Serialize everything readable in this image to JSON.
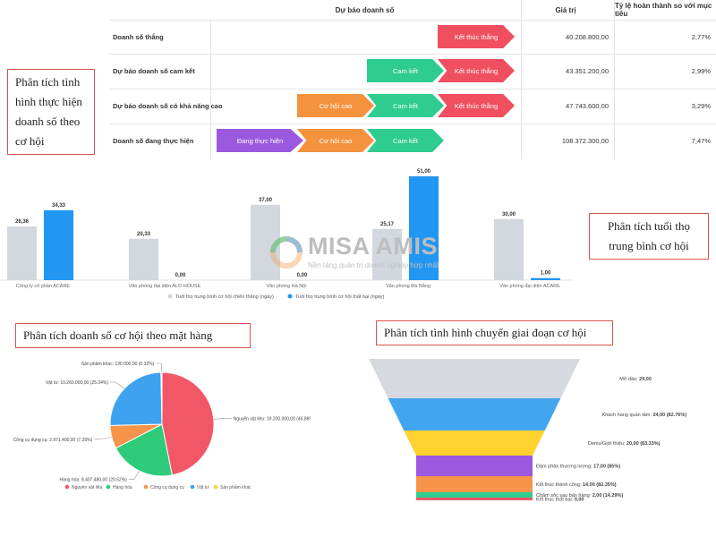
{
  "forecast_table": {
    "col_forecast": "Dự báo doanh số",
    "col_value": "Giá trị",
    "col_ratio": "Tỷ lệ hoàn thành so với mục tiêu",
    "rows": [
      {
        "label": "Doanh số thắng",
        "stages": [
          "Kết thúc thắng"
        ],
        "value": "40.208.800,00",
        "ratio": "2,77%"
      },
      {
        "label": "Dự báo doanh số cam kết",
        "stages": [
          "Cam kết",
          "Kết thúc thắng"
        ],
        "value": "43.351.200,00",
        "ratio": "2,99%"
      },
      {
        "label": "Dự báo doanh số có khả năng cao",
        "stages": [
          "Cơ hội cao",
          "Cam kết",
          "Kết thúc thắng"
        ],
        "value": "47.743.600,00",
        "ratio": "3,29%"
      },
      {
        "label": "Doanh số đang thực hiện",
        "stages": [
          "Đang thực hiện",
          "Cơ hội cao",
          "Cam kết"
        ],
        "value": "108.372.300,00",
        "ratio": "7,47%"
      }
    ],
    "stage_colors": {
      "Đang thực hiện": "#9b59e0",
      "Cơ hội cao": "#f5923e",
      "Cam kết": "#2ecc8f",
      "Kết thúc thắng": "#ef4f5f"
    }
  },
  "callouts": {
    "forecast": "Phân tích tình hình thực hiện doanh số theo cơ hội",
    "age": "Phân tích tuổi thọ trung bình cơ hội",
    "product": "Phân tích doanh số cơ hội theo mặt hàng",
    "stage": "Phân tích tình hình chuyển giai đoạn cơ hội"
  },
  "watermark": {
    "brand": "MISA AMIS",
    "tagline": "Nền tảng quản trị doanh nghiệp hợp nhất"
  },
  "chart_data": [
    {
      "type": "bar",
      "categories": [
        "Công ty cổ phần ACARE",
        "Văn phòng đại diện ALO HOUSE",
        "Văn phòng Hà Nội",
        "Văn phòng Đà Nẵng",
        "Văn phòng đại diện ACARE"
      ],
      "series": [
        {
          "name": "Tuổi thọ trung bình cơ hội chiến thắng (ngày)",
          "color": "#d3d7de",
          "values": [
            26.36,
            20.33,
            37.0,
            25.17,
            30.0
          ],
          "labels": [
            "26,36",
            "20,33",
            "37,00",
            "25,17",
            "30,00"
          ]
        },
        {
          "name": "Tuổi thọ trung bình cơ hội thất bại (ngày)",
          "color": "#2196f3",
          "values": [
            34.33,
            0.0,
            0.0,
            51.0,
            1.0
          ],
          "labels": [
            "34,33",
            "0,00",
            "0,00",
            "51,00",
            "1,00"
          ]
        }
      ],
      "ylim": [
        0,
        51
      ],
      "legend": "bottom"
    },
    {
      "type": "pie",
      "slices": [
        {
          "name": "Nguyên vật liệu",
          "value": 19200000,
          "percent": 46.86,
          "label": "Nguyên vật liệu: 19.200.000,00 (46.86%)",
          "color": "#f25767"
        },
        {
          "name": "Hàng hóa",
          "value": 8407480,
          "percent": 20.52,
          "label": "Hàng hóa: 8.407.480,00 (20.52%)",
          "color": "#2ecc7a"
        },
        {
          "name": "Công cụ dụng cụ",
          "value": 2971400,
          "percent": 7.25,
          "label": "Công cụ dụng cụ: 2.971.400,00 (7.25%)",
          "color": "#f7944a"
        },
        {
          "name": "Vật tư",
          "value": 10260000,
          "percent": 25.04,
          "label": "Vật tư: 10.260.000,00 (25.04%)",
          "color": "#3ea2f0"
        },
        {
          "name": "Sản phẩm khác",
          "value": 130000,
          "percent": 0.32,
          "label": "Sản phẩm khác: 130.000,00 (0.32%)",
          "color": "#f5d33a"
        }
      ],
      "legend": "bottom"
    },
    {
      "type": "funnel",
      "stages": [
        {
          "name": "Mở đầu",
          "value": 29.0,
          "percent": null,
          "label_name": "Mở đầu:",
          "label_value": "29,00",
          "color": "#d6d9e0"
        },
        {
          "name": "Khách hàng quan tâm",
          "value": 24.0,
          "percent": 82.76,
          "label_name": "Khách hàng quan tâm:",
          "label_value": "24,00 (82.76%)",
          "color": "#42a5f0"
        },
        {
          "name": "Demo/Giới thiệu",
          "value": 20.0,
          "percent": 83.33,
          "label_name": "Demo/Giới thiệu:",
          "label_value": "20,00 (83.33%)",
          "color": "#ffd22e"
        },
        {
          "name": "Đàm phán thương lượng",
          "value": 17.0,
          "percent": 85,
          "label_name": "Đàm phán thương lượng:",
          "label_value": "17,00 (85%)",
          "color": "#9b59e0"
        },
        {
          "name": "Kết thúc thành công",
          "value": 14.0,
          "percent": 82.35,
          "label_name": "Kết thúc thành công:",
          "label_value": "14,00 (82.35%)",
          "color": "#f7944a"
        },
        {
          "name": "Chăm sóc sau bán hàng",
          "value": 2.0,
          "percent": 14.29,
          "label_name": "Chăm sóc sau bán hàng:",
          "label_value": "2,00 (14.29%)",
          "color": "#2ecc8f"
        },
        {
          "name": "Kết thúc thất bại",
          "value": 0.0,
          "percent": null,
          "label_name": "Kết thúc thất bại:",
          "label_value": "0,00",
          "color": "#f25767"
        }
      ]
    }
  ]
}
